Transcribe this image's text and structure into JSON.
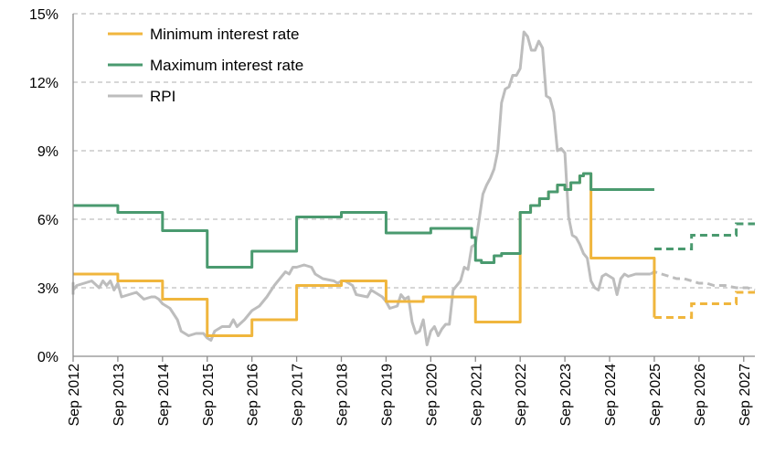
{
  "chart_data": {
    "type": "line",
    "title": "",
    "xlabel": "",
    "ylabel": "",
    "ylim": [
      0,
      15
    ],
    "y_ticks": [
      0,
      3,
      6,
      9,
      12,
      15
    ],
    "y_tick_labels": [
      "0%",
      "3%",
      "6%",
      "9%",
      "12%",
      "15%"
    ],
    "y_grid": true,
    "x_range": [
      2012.667,
      2027.917
    ],
    "x_ticks": [
      2012.667,
      2013.667,
      2014.667,
      2015.667,
      2016.667,
      2017.667,
      2018.667,
      2019.667,
      2020.667,
      2021.667,
      2022.667,
      2023.667,
      2024.667,
      2025.667,
      2026.667,
      2027.667
    ],
    "x_tick_labels": [
      "Sep 2012",
      "Sep 2013",
      "Sep 2014",
      "Sep 2015",
      "Sep 2016",
      "Sep 2017",
      "Sep 2018",
      "Sep 2019",
      "Sep 2020",
      "Sep 2021",
      "Sep 2022",
      "Sep 2023",
      "Sep 2024",
      "Sep 2025",
      "Sep 2026",
      "Sep 2027"
    ],
    "legend_position": "top-left",
    "series": [
      {
        "name": "Minimum interest rate",
        "color": "#f0b63d",
        "style": "step",
        "values": [
          [
            2012.667,
            3.6
          ],
          [
            2013.667,
            3.3
          ],
          [
            2014.667,
            2.5
          ],
          [
            2015.667,
            0.9
          ],
          [
            2016.667,
            1.6
          ],
          [
            2017.667,
            3.1
          ],
          [
            2018.667,
            3.3
          ],
          [
            2019.667,
            2.4
          ],
          [
            2020.5,
            2.6
          ],
          [
            2021.667,
            1.5
          ],
          [
            2022.667,
            6.3
          ],
          [
            2022.9,
            6.6
          ],
          [
            2023.1,
            6.9
          ],
          [
            2023.3,
            7.2
          ],
          [
            2023.5,
            7.5
          ],
          [
            2023.667,
            7.3
          ],
          [
            2023.8,
            7.6
          ],
          [
            2024.0,
            7.9
          ],
          [
            2024.083,
            8.0
          ],
          [
            2024.25,
            4.3
          ],
          [
            2025.667,
            1.7
          ]
        ],
        "projected_from": 2025.667,
        "projection": [
          [
            2025.667,
            1.7
          ],
          [
            2026.5,
            2.3
          ],
          [
            2027.5,
            2.8
          ],
          [
            2027.917,
            2.8
          ]
        ]
      },
      {
        "name": "Maximum interest rate",
        "color": "#4a9a6f",
        "style": "step",
        "values": [
          [
            2012.667,
            6.6
          ],
          [
            2013.667,
            6.3
          ],
          [
            2014.667,
            5.5
          ],
          [
            2015.667,
            3.9
          ],
          [
            2016.667,
            4.6
          ],
          [
            2017.667,
            6.1
          ],
          [
            2018.667,
            6.3
          ],
          [
            2019.667,
            5.4
          ],
          [
            2020.667,
            5.6
          ],
          [
            2021.583,
            5.2
          ],
          [
            2021.667,
            4.2
          ],
          [
            2021.8,
            4.1
          ],
          [
            2022.083,
            4.4
          ],
          [
            2022.25,
            4.5
          ],
          [
            2022.667,
            6.3
          ],
          [
            2022.9,
            6.6
          ],
          [
            2023.1,
            6.9
          ],
          [
            2023.3,
            7.2
          ],
          [
            2023.5,
            7.5
          ],
          [
            2023.667,
            7.3
          ],
          [
            2023.8,
            7.6
          ],
          [
            2024.0,
            7.9
          ],
          [
            2024.083,
            8.0
          ],
          [
            2024.25,
            7.3
          ]
        ],
        "projected_from": 2025.667,
        "projection": [
          [
            2025.667,
            4.7
          ],
          [
            2026.5,
            5.3
          ],
          [
            2027.5,
            5.8
          ],
          [
            2027.917,
            5.8
          ]
        ]
      },
      {
        "name": "RPI",
        "color": "#bdbdbd",
        "style": "linear",
        "values": [
          [
            2012.5,
            2.7
          ],
          [
            2012.583,
            3.2
          ],
          [
            2012.667,
            2.9
          ],
          [
            2012.75,
            3.1
          ],
          [
            2012.917,
            3.2
          ],
          [
            2013.083,
            3.3
          ],
          [
            2013.25,
            3.0
          ],
          [
            2013.333,
            3.3
          ],
          [
            2013.417,
            3.1
          ],
          [
            2013.5,
            3.3
          ],
          [
            2013.583,
            2.9
          ],
          [
            2013.667,
            3.2
          ],
          [
            2013.75,
            2.6
          ],
          [
            2013.917,
            2.7
          ],
          [
            2014.083,
            2.8
          ],
          [
            2014.25,
            2.5
          ],
          [
            2014.417,
            2.6
          ],
          [
            2014.5,
            2.6
          ],
          [
            2014.583,
            2.5
          ],
          [
            2014.667,
            2.3
          ],
          [
            2014.833,
            2.1
          ],
          [
            2015.0,
            1.6
          ],
          [
            2015.083,
            1.1
          ],
          [
            2015.25,
            0.9
          ],
          [
            2015.417,
            1.0
          ],
          [
            2015.583,
            1.0
          ],
          [
            2015.667,
            0.8
          ],
          [
            2015.75,
            0.7
          ],
          [
            2015.833,
            1.1
          ],
          [
            2015.917,
            1.2
          ],
          [
            2016.0,
            1.3
          ],
          [
            2016.167,
            1.3
          ],
          [
            2016.25,
            1.6
          ],
          [
            2016.333,
            1.3
          ],
          [
            2016.5,
            1.6
          ],
          [
            2016.667,
            2.0
          ],
          [
            2016.833,
            2.2
          ],
          [
            2017.0,
            2.6
          ],
          [
            2017.167,
            3.1
          ],
          [
            2017.333,
            3.5
          ],
          [
            2017.417,
            3.7
          ],
          [
            2017.5,
            3.6
          ],
          [
            2017.583,
            3.9
          ],
          [
            2017.667,
            3.9
          ],
          [
            2017.833,
            4.0
          ],
          [
            2018.0,
            3.9
          ],
          [
            2018.083,
            3.6
          ],
          [
            2018.25,
            3.4
          ],
          [
            2018.5,
            3.3
          ],
          [
            2018.583,
            3.2
          ],
          [
            2018.667,
            3.3
          ],
          [
            2018.75,
            3.3
          ],
          [
            2018.917,
            3.1
          ],
          [
            2019.0,
            2.7
          ],
          [
            2019.25,
            2.6
          ],
          [
            2019.333,
            2.9
          ],
          [
            2019.417,
            2.8
          ],
          [
            2019.583,
            2.6
          ],
          [
            2019.667,
            2.4
          ],
          [
            2019.75,
            2.1
          ],
          [
            2019.917,
            2.2
          ],
          [
            2020.0,
            2.7
          ],
          [
            2020.083,
            2.5
          ],
          [
            2020.167,
            2.6
          ],
          [
            2020.25,
            1.5
          ],
          [
            2020.333,
            1.0
          ],
          [
            2020.417,
            1.1
          ],
          [
            2020.5,
            1.6
          ],
          [
            2020.583,
            0.5
          ],
          [
            2020.667,
            1.1
          ],
          [
            2020.75,
            1.3
          ],
          [
            2020.833,
            0.9
          ],
          [
            2020.917,
            1.2
          ],
          [
            2021.0,
            1.4
          ],
          [
            2021.083,
            1.4
          ],
          [
            2021.167,
            2.9
          ],
          [
            2021.333,
            3.3
          ],
          [
            2021.417,
            3.9
          ],
          [
            2021.5,
            3.8
          ],
          [
            2021.583,
            4.8
          ],
          [
            2021.667,
            4.9
          ],
          [
            2021.75,
            6.0
          ],
          [
            2021.833,
            7.1
          ],
          [
            2021.917,
            7.5
          ],
          [
            2022.0,
            7.8
          ],
          [
            2022.083,
            8.2
          ],
          [
            2022.167,
            9.0
          ],
          [
            2022.25,
            11.1
          ],
          [
            2022.333,
            11.7
          ],
          [
            2022.417,
            11.8
          ],
          [
            2022.5,
            12.3
          ],
          [
            2022.583,
            12.3
          ],
          [
            2022.667,
            12.6
          ],
          [
            2022.75,
            14.2
          ],
          [
            2022.833,
            14.0
          ],
          [
            2022.917,
            13.4
          ],
          [
            2023.0,
            13.4
          ],
          [
            2023.083,
            13.8
          ],
          [
            2023.167,
            13.5
          ],
          [
            2023.25,
            11.4
          ],
          [
            2023.333,
            11.3
          ],
          [
            2023.417,
            10.7
          ],
          [
            2023.5,
            9.0
          ],
          [
            2023.583,
            9.1
          ],
          [
            2023.667,
            8.9
          ],
          [
            2023.75,
            6.1
          ],
          [
            2023.833,
            5.3
          ],
          [
            2023.917,
            5.2
          ],
          [
            2024.0,
            4.9
          ],
          [
            2024.083,
            4.5
          ],
          [
            2024.167,
            4.3
          ],
          [
            2024.25,
            3.3
          ],
          [
            2024.333,
            3.0
          ],
          [
            2024.417,
            2.9
          ],
          [
            2024.5,
            3.5
          ],
          [
            2024.583,
            3.6
          ],
          [
            2024.667,
            3.5
          ],
          [
            2024.75,
            3.4
          ],
          [
            2024.833,
            2.7
          ],
          [
            2024.917,
            3.4
          ],
          [
            2025.0,
            3.6
          ],
          [
            2025.083,
            3.5
          ],
          [
            2025.25,
            3.6
          ],
          [
            2025.417,
            3.6
          ],
          [
            2025.583,
            3.6
          ]
        ],
        "projected_from": 2025.583,
        "projection": [
          [
            2025.583,
            3.6
          ],
          [
            2025.667,
            3.7
          ],
          [
            2025.833,
            3.6
          ],
          [
            2026.0,
            3.5
          ],
          [
            2026.167,
            3.4
          ],
          [
            2026.333,
            3.4
          ],
          [
            2026.5,
            3.3
          ],
          [
            2026.667,
            3.2
          ],
          [
            2026.833,
            3.2
          ],
          [
            2027.0,
            3.1
          ],
          [
            2027.25,
            3.1
          ],
          [
            2027.5,
            3.0
          ],
          [
            2027.75,
            3.0
          ],
          [
            2027.917,
            2.9
          ]
        ]
      }
    ]
  }
}
